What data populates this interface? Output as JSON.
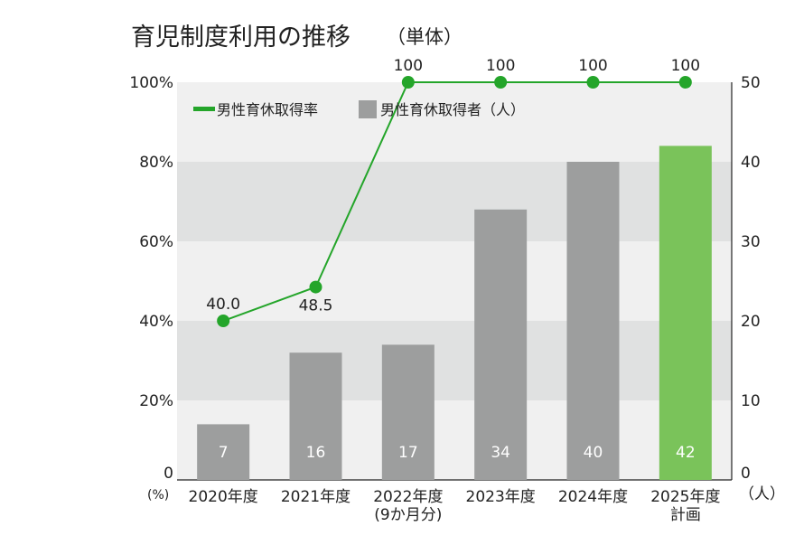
{
  "chart_data": {
    "type": "bar",
    "title": "育児制度利用の推移",
    "subtitle": "（単体）",
    "categories": [
      [
        "2020年度"
      ],
      [
        "2021年度"
      ],
      [
        "2022年度",
        "(9か月分)"
      ],
      [
        "2023年度"
      ],
      [
        "2024年度"
      ],
      [
        "2025年度",
        "計画"
      ]
    ],
    "series": [
      {
        "name": "男性育休取得者（人）",
        "type": "bar",
        "axis": "right",
        "values": [
          7,
          16,
          17,
          34,
          40,
          42
        ],
        "value_labels": [
          "7",
          "16",
          "17",
          "34",
          "40",
          "42"
        ],
        "color": "#9d9e9e",
        "highlight": {
          "index": 5,
          "color": "#7ac35a"
        }
      },
      {
        "name": "男性育休取得率",
        "type": "line",
        "axis": "left",
        "values": [
          40.0,
          48.5,
          100,
          100,
          100,
          100
        ],
        "value_labels": [
          "40.0",
          "48.5",
          "100",
          "100",
          "100",
          "100"
        ],
        "color": "#24a52a"
      }
    ],
    "left_axis": {
      "unit": "(%)",
      "range": [
        0,
        100
      ],
      "ticks": [
        0,
        20,
        40,
        60,
        80,
        100
      ],
      "tick_labels": [
        "0",
        "20%",
        "40%",
        "60%",
        "80%",
        "100%"
      ]
    },
    "right_axis": {
      "unit": "（人）",
      "range": [
        0,
        50
      ],
      "ticks": [
        0,
        10,
        20,
        30,
        40,
        50
      ],
      "tick_labels": [
        "0",
        "10",
        "20",
        "30",
        "40",
        "50"
      ]
    },
    "legend_position": "top-left",
    "grid": "alternating horizontal bands"
  }
}
